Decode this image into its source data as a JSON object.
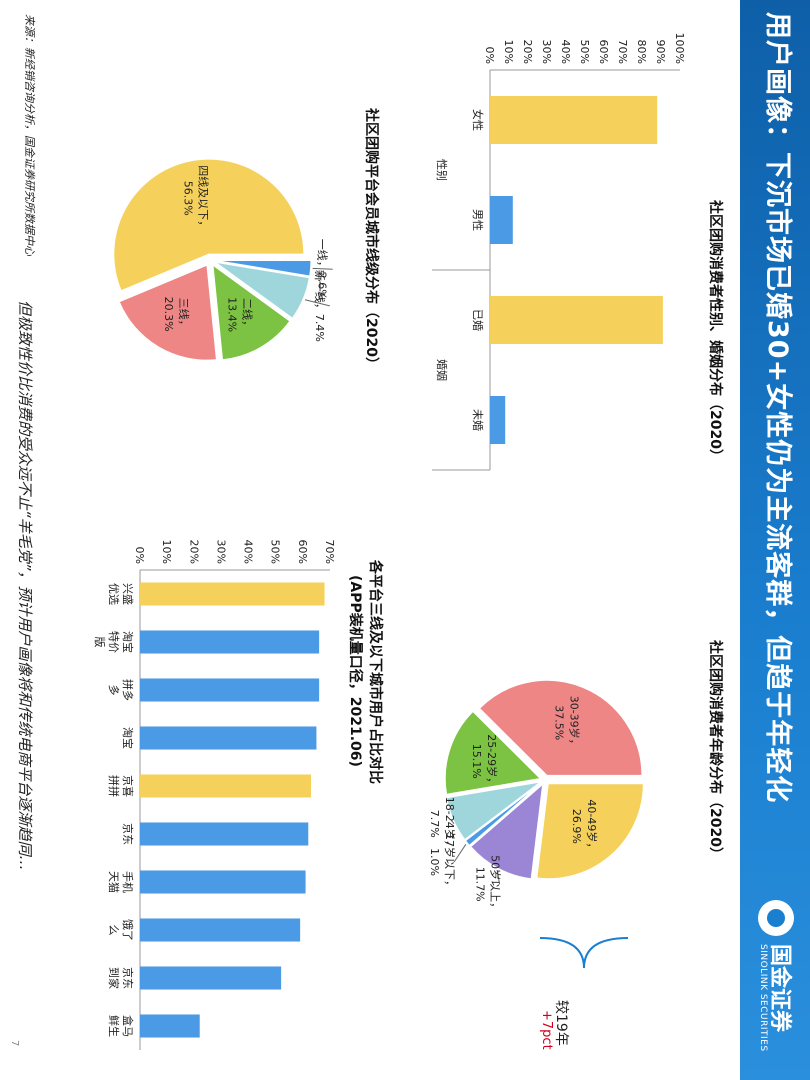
{
  "slide": {
    "title": "用户画像：下沉市场已婚30+女性仍为主流客群，但趋于年轻化",
    "logo_cn": "国金证券",
    "logo_en": "SINOLINK SECURITIES",
    "source": "来源：新经销咨询分析，国金证券研究所数据中心",
    "conclusion": "但极致性价比消费的受众远不止“羊毛党”，预计用户画像将和传统电商平台逐渐趋同…",
    "page_number": "7",
    "compare_label": "较19年",
    "compare_value": "+7pct",
    "colors": {
      "blue": "#4a9ae5",
      "yellow": "#f5d15c",
      "red": "#ee8686",
      "green": "#7cc243",
      "teal": "#9ed6dc",
      "purple": "#9b86d6",
      "header": "#1b7fd0"
    }
  },
  "chart_data": [
    {
      "type": "bar",
      "title": "社区团购消费者性别、婚姻分布（2020）",
      "groups": [
        "性别",
        "婚姻"
      ],
      "categories": [
        "女性",
        "男性",
        "已婚",
        "未婚"
      ],
      "values": [
        0.88,
        0.12,
        0.91,
        0.08
      ],
      "highlight": [
        true,
        false,
        true,
        false
      ],
      "yticks": [
        "0%",
        "10%",
        "20%",
        "30%",
        "40%",
        "50%",
        "60%",
        "70%",
        "80%",
        "90%",
        "100%"
      ],
      "ylim": [
        0,
        1
      ]
    },
    {
      "type": "pie",
      "title": "社区团购消费者年龄分布（2020）",
      "slices": [
        {
          "label": "40-49岁",
          "value": 26.9,
          "text": "26.9%",
          "color": "#f5d15c"
        },
        {
          "label": "50岁以上",
          "value": 11.7,
          "text": "11.7%",
          "color": "#9b86d6"
        },
        {
          "label": "17岁以下",
          "value": 1.0,
          "text": "1.0%",
          "color": "#4a9ae5"
        },
        {
          "label": "18-24岁",
          "value": 7.7,
          "text": "7.7%",
          "color": "#9ed6dc"
        },
        {
          "label": "25-29岁",
          "value": 15.1,
          "text": "15.1%",
          "color": "#7cc243"
        },
        {
          "label": "30-39岁",
          "value": 37.5,
          "text": "37.5%",
          "color": "#ee8686"
        }
      ]
    },
    {
      "type": "pie",
      "title": "社区团购平台会员城市线级分布（2020）",
      "slices": [
        {
          "label": "一线",
          "value": 2.6,
          "text": "2.6%",
          "color": "#4a9ae5"
        },
        {
          "label": "新一线",
          "value": 7.4,
          "text": "7.4%",
          "color": "#9ed6dc"
        },
        {
          "label": "二线",
          "value": 13.4,
          "text": "13.4%",
          "color": "#7cc243"
        },
        {
          "label": "三线",
          "value": 20.3,
          "text": "20.3%",
          "color": "#ee8686"
        },
        {
          "label": "四线及以下",
          "value": 56.3,
          "text": "56.3%",
          "color": "#f5d15c"
        }
      ]
    },
    {
      "type": "bar",
      "title": "各平台三线及以下城市用户占比对比",
      "subtitle": "(APP装机量口径，2021.06)",
      "categories": [
        "兴盛优选",
        "淘宝特价版",
        "拼多多",
        "淘宝",
        "京喜拼拼",
        "京东",
        "手机天猫",
        "饿了么",
        "京东到家",
        "盒马鲜生"
      ],
      "values": [
        0.68,
        0.66,
        0.66,
        0.65,
        0.63,
        0.62,
        0.61,
        0.59,
        0.52,
        0.22
      ],
      "highlight": [
        true,
        false,
        false,
        false,
        true,
        false,
        false,
        false,
        false,
        false
      ],
      "yticks": [
        "0%",
        "10%",
        "20%",
        "30%",
        "40%",
        "50%",
        "60%",
        "70%"
      ],
      "ylim": [
        0,
        0.7
      ]
    }
  ]
}
